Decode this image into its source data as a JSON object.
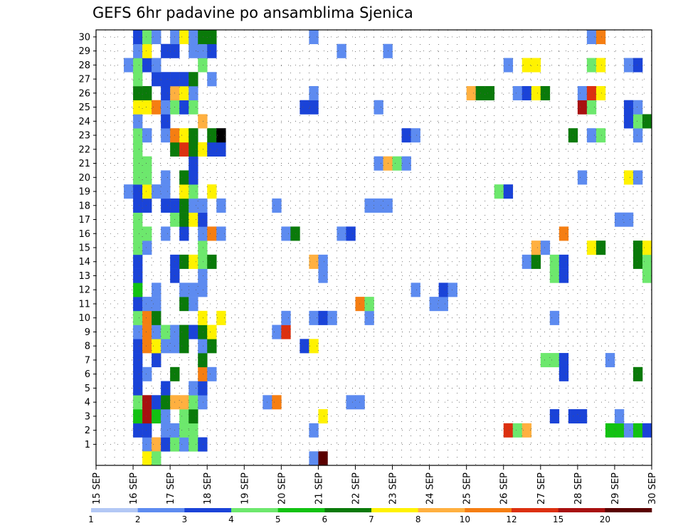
{
  "chart_data": {
    "type": "heatmap",
    "title": "GEFS 6hr padavine po ansamblima Sjenica",
    "xlabel": "",
    "ylabel": "",
    "x_ticks": [
      "15 SEP",
      "16 SEP",
      "17 SEP",
      "18 SEP",
      "19 SEP",
      "20 SEP",
      "21 SEP",
      "22 SEP",
      "23 SEP",
      "24 SEP",
      "25 SEP",
      "26 SEP",
      "27 SEP",
      "28 SEP",
      "29 SEP",
      "30 SEP"
    ],
    "xlim_days": [
      15,
      30
    ],
    "step_hours": 6,
    "members": [
      1,
      2,
      3,
      4,
      5,
      6,
      7,
      8,
      9,
      10,
      11,
      12,
      13,
      14,
      15,
      16,
      17,
      18,
      19,
      20,
      21,
      22,
      23,
      24,
      25,
      26,
      27,
      28,
      29,
      30
    ],
    "grid": "dotted",
    "colorbar": {
      "levels": [
        "1",
        "2",
        "3",
        "4",
        "5",
        "6",
        "7",
        "8",
        "10",
        "12",
        "15",
        "20"
      ],
      "colors": [
        "#b3c8f5",
        "#5d8bf0",
        "#1a43d8",
        "#6de86d",
        "#12c212",
        "#0a7a0a",
        "#fff200",
        "#ffb040",
        "#f57e12",
        "#dc3010",
        "#a81010",
        "#5a0000"
      ]
    },
    "cells": [
      [
        1,
        16.25,
        1
      ],
      [
        1,
        16.5,
        7
      ],
      [
        1,
        16.75,
        2
      ],
      [
        1,
        17,
        3
      ],
      [
        1,
        17.25,
        1
      ],
      [
        1,
        17.5,
        3
      ],
      [
        1,
        17.75,
        2
      ],
      [
        2,
        16.0,
        2
      ],
      [
        2,
        16.25,
        2
      ],
      [
        2,
        16.75,
        1
      ],
      [
        2,
        17.0,
        1
      ],
      [
        2,
        17.25,
        3
      ],
      [
        2,
        17.5,
        3
      ],
      [
        2,
        20.75,
        1
      ],
      [
        2,
        26.0,
        9
      ],
      [
        2,
        26.25,
        3
      ],
      [
        2,
        26.5,
        7
      ],
      [
        2,
        28.75,
        4
      ],
      [
        2,
        29.0,
        4
      ],
      [
        2,
        29.25,
        1
      ],
      [
        2,
        29.5,
        4
      ],
      [
        2,
        29.75,
        2
      ],
      [
        3,
        16.0,
        4
      ],
      [
        3,
        16.25,
        10
      ],
      [
        3,
        16.5,
        4
      ],
      [
        3,
        16.75,
        1
      ],
      [
        3,
        17.25,
        3
      ],
      [
        3,
        17.5,
        5
      ],
      [
        3,
        21.0,
        6
      ],
      [
        3,
        27.25,
        2
      ],
      [
        3,
        27.75,
        2
      ],
      [
        3,
        28.0,
        2
      ],
      [
        3,
        29.0,
        1
      ],
      [
        4,
        16.0,
        3
      ],
      [
        4,
        16.25,
        10
      ],
      [
        4,
        16.5,
        2
      ],
      [
        4,
        16.75,
        5
      ],
      [
        4,
        17.0,
        7
      ],
      [
        4,
        17.25,
        7
      ],
      [
        4,
        17.5,
        3
      ],
      [
        4,
        17.75,
        1
      ],
      [
        4,
        19.5,
        1
      ],
      [
        4,
        19.75,
        8
      ],
      [
        4,
        21.75,
        1
      ],
      [
        4,
        22.0,
        1
      ],
      [
        5,
        16.0,
        2
      ],
      [
        5,
        16.75,
        2
      ],
      [
        5,
        17.5,
        1
      ],
      [
        5,
        17.75,
        2
      ],
      [
        6,
        16.0,
        2
      ],
      [
        6,
        16.25,
        1
      ],
      [
        6,
        17.0,
        5
      ],
      [
        6,
        17.75,
        8
      ],
      [
        6,
        18.0,
        1
      ],
      [
        6,
        27.5,
        2
      ],
      [
        6,
        29.5,
        5
      ],
      [
        7,
        16.0,
        2
      ],
      [
        7,
        16.5,
        2
      ],
      [
        7,
        17.75,
        5
      ],
      [
        7,
        27.0,
        3
      ],
      [
        7,
        27.25,
        3
      ],
      [
        7,
        27.5,
        2
      ],
      [
        7,
        28.75,
        1
      ],
      [
        8,
        16.0,
        2
      ],
      [
        8,
        16.25,
        8
      ],
      [
        8,
        16.5,
        6
      ],
      [
        8,
        16.75,
        1
      ],
      [
        8,
        17.0,
        1
      ],
      [
        8,
        17.25,
        5
      ],
      [
        8,
        17.75,
        1
      ],
      [
        8,
        18.0,
        5
      ],
      [
        8,
        20.5,
        2
      ],
      [
        8,
        20.75,
        6
      ],
      [
        9,
        16.0,
        1
      ],
      [
        9,
        16.25,
        8
      ],
      [
        9,
        16.5,
        1
      ],
      [
        9,
        16.75,
        3
      ],
      [
        9,
        17.0,
        1
      ],
      [
        9,
        17.25,
        5
      ],
      [
        9,
        17.5,
        2
      ],
      [
        9,
        17.75,
        5
      ],
      [
        9,
        18.0,
        6
      ],
      [
        9,
        19.75,
        1
      ],
      [
        9,
        20.0,
        9
      ],
      [
        10,
        16.0,
        3
      ],
      [
        10,
        16.25,
        8
      ],
      [
        10,
        16.5,
        5
      ],
      [
        10,
        17.75,
        6
      ],
      [
        10,
        18.25,
        6
      ],
      [
        10,
        20.0,
        1
      ],
      [
        10,
        20.75,
        1
      ],
      [
        10,
        21.0,
        2
      ],
      [
        10,
        21.25,
        1
      ],
      [
        10,
        22.25,
        1
      ],
      [
        10,
        27.25,
        1
      ],
      [
        11,
        16.0,
        2
      ],
      [
        11,
        16.25,
        1
      ],
      [
        11,
        16.5,
        1
      ],
      [
        11,
        17.25,
        5
      ],
      [
        11,
        17.5,
        1
      ],
      [
        11,
        22.0,
        8
      ],
      [
        11,
        22.25,
        3
      ],
      [
        11,
        24.0,
        1
      ],
      [
        11,
        24.25,
        1
      ],
      [
        12,
        16.0,
        4
      ],
      [
        12,
        16.5,
        1
      ],
      [
        12,
        17.25,
        1
      ],
      [
        12,
        17.5,
        1
      ],
      [
        12,
        17.75,
        1
      ],
      [
        12,
        23.5,
        1
      ],
      [
        12,
        24.25,
        2
      ],
      [
        12,
        24.5,
        1
      ],
      [
        13,
        16.0,
        2
      ],
      [
        13,
        17.0,
        2
      ],
      [
        13,
        17.75,
        1
      ],
      [
        13,
        21.0,
        1
      ],
      [
        13,
        27.25,
        3
      ],
      [
        13,
        27.5,
        2
      ],
      [
        13,
        29.75,
        3
      ],
      [
        14,
        16.0,
        2
      ],
      [
        14,
        17.0,
        2
      ],
      [
        14,
        17.25,
        5
      ],
      [
        14,
        17.5,
        6
      ],
      [
        14,
        17.75,
        3
      ],
      [
        14,
        18.0,
        5
      ],
      [
        14,
        20.75,
        7
      ],
      [
        14,
        21.0,
        1
      ],
      [
        14,
        26.5,
        1
      ],
      [
        14,
        26.75,
        5
      ],
      [
        14,
        27.25,
        3
      ],
      [
        14,
        27.5,
        2
      ],
      [
        14,
        29.5,
        5
      ],
      [
        14,
        29.75,
        3
      ],
      [
        15,
        16.0,
        3
      ],
      [
        15,
        16.25,
        1
      ],
      [
        15,
        17.75,
        3
      ],
      [
        15,
        26.75,
        7
      ],
      [
        15,
        27.0,
        1
      ],
      [
        15,
        28.25,
        6
      ],
      [
        15,
        28.5,
        5
      ],
      [
        15,
        29.5,
        5
      ],
      [
        15,
        29.75,
        6
      ],
      [
        16,
        16.0,
        3
      ],
      [
        16,
        16.25,
        3
      ],
      [
        16,
        16.75,
        1
      ],
      [
        16,
        17.25,
        2
      ],
      [
        16,
        17.75,
        1
      ],
      [
        16,
        18.0,
        8
      ],
      [
        16,
        18.25,
        1
      ],
      [
        16,
        20.0,
        1
      ],
      [
        16,
        20.25,
        5
      ],
      [
        16,
        21.5,
        1
      ],
      [
        16,
        21.75,
        2
      ],
      [
        16,
        27.5,
        8
      ],
      [
        17,
        16.0,
        3
      ],
      [
        17,
        17.0,
        3
      ],
      [
        17,
        17.25,
        5
      ],
      [
        17,
        17.5,
        6
      ],
      [
        17,
        17.75,
        2
      ],
      [
        17,
        29.0,
        1
      ],
      [
        17,
        29.25,
        1
      ],
      [
        18,
        16.0,
        2
      ],
      [
        18,
        16.25,
        2
      ],
      [
        18,
        16.75,
        2
      ],
      [
        18,
        17.0,
        2
      ],
      [
        18,
        17.25,
        5
      ],
      [
        18,
        17.5,
        1
      ],
      [
        18,
        17.75,
        1
      ],
      [
        18,
        18.25,
        1
      ],
      [
        18,
        19.75,
        1
      ],
      [
        18,
        22.25,
        1
      ],
      [
        18,
        22.5,
        1
      ],
      [
        18,
        22.75,
        1
      ],
      [
        19,
        15.75,
        1
      ],
      [
        19,
        16.0,
        2
      ],
      [
        19,
        16.25,
        6
      ],
      [
        19,
        16.5,
        1
      ],
      [
        19,
        16.75,
        1
      ],
      [
        19,
        17.25,
        6
      ],
      [
        19,
        17.5,
        3
      ],
      [
        19,
        18.0,
        6
      ],
      [
        19,
        25.75,
        3
      ],
      [
        19,
        26.0,
        2
      ],
      [
        20,
        16.0,
        3
      ],
      [
        20,
        16.25,
        3
      ],
      [
        20,
        16.75,
        1
      ],
      [
        20,
        17.25,
        5
      ],
      [
        20,
        17.5,
        2
      ],
      [
        20,
        28.0,
        1
      ],
      [
        20,
        29.25,
        6
      ],
      [
        20,
        29.5,
        1
      ],
      [
        21,
        16.0,
        3
      ],
      [
        21,
        16.25,
        3
      ],
      [
        21,
        17.5,
        2
      ],
      [
        21,
        22.5,
        1
      ],
      [
        21,
        22.75,
        7
      ],
      [
        21,
        23.0,
        3
      ],
      [
        21,
        23.25,
        1
      ],
      [
        22,
        16.0,
        3
      ],
      [
        22,
        17.0,
        5
      ],
      [
        22,
        17.25,
        9
      ],
      [
        22,
        17.5,
        5
      ],
      [
        22,
        17.75,
        6
      ],
      [
        22,
        18.0,
        2
      ],
      [
        22,
        18.25,
        2
      ],
      [
        23,
        16.0,
        3
      ],
      [
        23,
        16.25,
        1
      ],
      [
        23,
        16.75,
        1
      ],
      [
        23,
        17.0,
        8
      ],
      [
        23,
        17.25,
        6
      ],
      [
        23,
        17.5,
        5
      ],
      [
        23,
        18.0,
        5
      ],
      [
        23,
        18.25,
        12
      ],
      [
        23,
        23.25,
        2
      ],
      [
        23,
        23.5,
        1
      ],
      [
        23,
        27.75,
        5
      ],
      [
        23,
        28.25,
        1
      ],
      [
        23,
        28.5,
        3
      ],
      [
        23,
        29.5,
        1
      ],
      [
        24,
        16.0,
        1
      ],
      [
        24,
        16.75,
        2
      ],
      [
        24,
        17.75,
        7
      ],
      [
        24,
        29.25,
        2
      ],
      [
        24,
        29.5,
        3
      ],
      [
        24,
        29.75,
        5
      ],
      [
        25,
        16.0,
        6
      ],
      [
        25,
        16.25,
        6
      ],
      [
        25,
        16.5,
        8
      ],
      [
        25,
        16.75,
        1
      ],
      [
        25,
        17.0,
        3
      ],
      [
        25,
        17.25,
        2
      ],
      [
        25,
        17.5,
        3
      ],
      [
        25,
        20.5,
        2
      ],
      [
        25,
        20.75,
        2
      ],
      [
        25,
        22.5,
        1
      ],
      [
        25,
        28.0,
        10
      ],
      [
        25,
        28.25,
        3
      ],
      [
        25,
        29.25,
        2
      ],
      [
        25,
        29.5,
        1
      ],
      [
        26,
        16.0,
        5
      ],
      [
        26,
        16.25,
        5
      ],
      [
        26,
        16.75,
        2
      ],
      [
        26,
        17.0,
        7
      ],
      [
        26,
        17.25,
        6
      ],
      [
        26,
        17.5,
        1
      ],
      [
        26,
        20.75,
        1
      ],
      [
        26,
        25.0,
        7
      ],
      [
        26,
        25.25,
        5
      ],
      [
        26,
        25.5,
        5
      ],
      [
        26,
        26.25,
        1
      ],
      [
        26,
        26.5,
        2
      ],
      [
        26,
        26.75,
        6
      ],
      [
        26,
        27.0,
        5
      ],
      [
        26,
        28.0,
        1
      ],
      [
        26,
        28.25,
        9
      ],
      [
        26,
        28.5,
        6
      ],
      [
        27,
        16.0,
        3
      ],
      [
        27,
        16.5,
        2
      ],
      [
        27,
        16.75,
        2
      ],
      [
        27,
        17.0,
        2
      ],
      [
        27,
        17.25,
        2
      ],
      [
        27,
        17.5,
        5
      ],
      [
        27,
        18.0,
        1
      ],
      [
        28,
        15.75,
        1
      ],
      [
        28,
        16.0,
        3
      ],
      [
        28,
        16.25,
        2
      ],
      [
        28,
        16.5,
        1
      ],
      [
        28,
        17.75,
        3
      ],
      [
        28,
        26.0,
        1
      ],
      [
        28,
        26.5,
        6
      ],
      [
        28,
        26.75,
        6
      ],
      [
        28,
        28.25,
        3
      ],
      [
        28,
        28.5,
        6
      ],
      [
        28,
        29.25,
        1
      ],
      [
        28,
        29.5,
        2
      ],
      [
        29,
        16.0,
        1
      ],
      [
        29,
        16.25,
        6
      ],
      [
        29,
        16.75,
        2
      ],
      [
        29,
        17.0,
        2
      ],
      [
        29,
        17.5,
        1
      ],
      [
        29,
        17.75,
        1
      ],
      [
        29,
        18.0,
        2
      ],
      [
        29,
        21.5,
        1
      ],
      [
        29,
        22.75,
        1
      ],
      [
        30,
        16.0,
        2
      ],
      [
        30,
        16.25,
        3
      ],
      [
        30,
        16.5,
        1
      ],
      [
        30,
        17.0,
        1
      ],
      [
        30,
        17.25,
        6
      ],
      [
        30,
        17.5,
        1
      ],
      [
        30,
        17.75,
        5
      ],
      [
        30,
        18.0,
        5
      ],
      [
        30,
        20.75,
        1
      ],
      [
        30,
        28.25,
        1
      ],
      [
        30,
        28.5,
        8
      ],
      [
        0,
        20.75,
        1
      ],
      [
        0,
        21.0,
        11
      ],
      [
        0,
        16.25,
        6
      ],
      [
        0,
        16.5,
        3
      ]
    ]
  }
}
